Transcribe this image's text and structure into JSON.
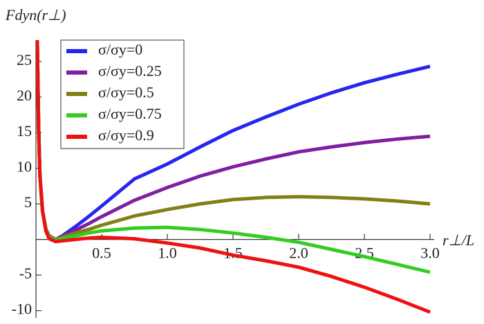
{
  "chart_data": {
    "type": "line",
    "y_label": "Fdyn(r⊥)",
    "x_label": "r⊥/L",
    "x": [
      0.01,
      0.02,
      0.03,
      0.05,
      0.075,
      0.1,
      0.15,
      0.2,
      0.3,
      0.4,
      0.5,
      0.75,
      1.0,
      1.25,
      1.5,
      1.75,
      2.0,
      2.25,
      2.5,
      2.75,
      3.0
    ],
    "series": [
      {
        "name": "σ/σy=0",
        "color": "#2626ee",
        "values": [
          28,
          16,
          9,
          4,
          1.5,
          0.5,
          0,
          0.5,
          1.8,
          3.2,
          4.7,
          8.5,
          10.6,
          13,
          15.3,
          17.2,
          19,
          20.6,
          22,
          23.2,
          24.3
        ]
      },
      {
        "name": "σ/σy=0.25",
        "color": "#7e1fa0",
        "values": [
          28,
          16,
          9,
          4,
          1.5,
          0.5,
          0,
          0.4,
          1.3,
          2.2,
          3.2,
          5.5,
          7.3,
          8.9,
          10.2,
          11.3,
          12.3,
          13,
          13.6,
          14.1,
          14.5
        ]
      },
      {
        "name": "σ/σy=0.5",
        "color": "#808014",
        "values": [
          28,
          16,
          9,
          4,
          1.5,
          0.4,
          0,
          0.3,
          0.9,
          1.4,
          2.0,
          3.3,
          4.2,
          5.0,
          5.6,
          5.9,
          6.0,
          5.9,
          5.7,
          5.4,
          5.0
        ]
      },
      {
        "name": "σ/σy=0.75",
        "color": "#33cc22",
        "values": [
          28,
          16,
          9,
          4,
          1.4,
          0.3,
          -0.1,
          0.1,
          0.5,
          0.9,
          1.2,
          1.6,
          1.7,
          1.4,
          0.9,
          0.3,
          -0.4,
          -1.4,
          -2.4,
          -3.5,
          -4.6
        ]
      },
      {
        "name": "σ/σy=0.9",
        "color": "#ee1111",
        "values": [
          28,
          16,
          9,
          4,
          1.2,
          0.1,
          -0.3,
          -0.2,
          0,
          0.2,
          0.3,
          0.1,
          -0.5,
          -1.2,
          -2.2,
          -3.0,
          -3.9,
          -5.2,
          -6.7,
          -8.4,
          -10.2
        ]
      }
    ],
    "xlim": [
      0,
      3.0
    ],
    "ylim": [
      -11,
      28
    ],
    "xticks": [
      0.5,
      {
        "value": 1,
        "label": "1.0"
      },
      1.5,
      {
        "value": 2,
        "label": "2.0"
      },
      2.5,
      {
        "value": 3,
        "label": "3.0"
      }
    ],
    "yticks": [
      -10,
      -5,
      5,
      10,
      15,
      20,
      25
    ],
    "legend": "upper-left",
    "grid": false
  }
}
